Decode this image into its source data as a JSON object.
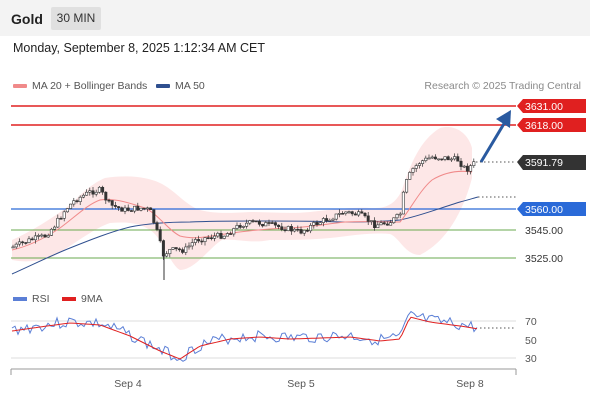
{
  "header": {
    "instrument": "Gold",
    "timeframe": "30 MIN"
  },
  "datetime": "Monday, September 8, 2025 1:12:34 AM CET",
  "legend": {
    "ma20": {
      "label": "MA 20 + Bollinger Bands",
      "color": "#f08a8a"
    },
    "ma50": {
      "label": "MA 50",
      "color": "#2f4f8f"
    },
    "credit": "Research © 2025 Trading Central"
  },
  "levels": {
    "resistance2": {
      "label": "3631.00",
      "value": 3631,
      "color": "#e02020"
    },
    "resistance1": {
      "label": "3618.00",
      "value": 3618,
      "color": "#e02020"
    },
    "last_price": {
      "label": "3591.79",
      "value": 3591.79,
      "color": "#333333"
    },
    "pivot": {
      "label": "3560.00",
      "value": 3560,
      "color": "#2a6ad8"
    },
    "support1": {
      "label": "3545.00",
      "value": 3545,
      "color": "#6aa84f"
    },
    "support2": {
      "label": "3525.00",
      "value": 3525,
      "color": "#6aa84f"
    }
  },
  "rsi": {
    "legend_rsi": "RSI",
    "legend_ma": "9MA",
    "rsi_color": "#5b7fd6",
    "ma_color": "#e02020",
    "ticks": [
      "70",
      "50",
      "30"
    ]
  },
  "x_axis": {
    "labels": [
      "Sep 4",
      "Sep 5",
      "Sep 8"
    ]
  },
  "arrow_color": "#2a5aa0"
}
